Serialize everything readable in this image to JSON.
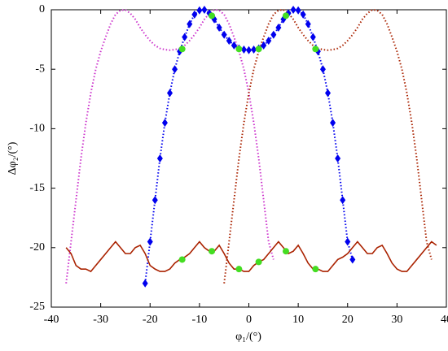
{
  "chart_data": {
    "type": "line",
    "xlabel": "φ₁/(°)",
    "ylabel": "Δφ₂/(°)",
    "xlim": [
      -40,
      40
    ],
    "xticks": [
      -40,
      -30,
      -20,
      -10,
      0,
      10,
      20,
      30,
      40
    ],
    "ylim": [
      -25,
      0
    ],
    "yticks": [
      -25,
      -20,
      -15,
      -10,
      -5,
      0
    ],
    "series": [
      {
        "color": "#cc33cc",
        "line": "dotted",
        "marker": "none",
        "x": [
          -37,
          -36,
          -35,
          -34,
          -33,
          -32,
          -31,
          -30,
          -29,
          -28,
          -27,
          -26,
          -25,
          -24,
          -23,
          -22,
          -21,
          -20,
          -19,
          -18,
          -17,
          -16,
          -15,
          -14,
          -13,
          -12,
          -11,
          -10,
          -9,
          -8,
          -7,
          -6,
          -5,
          -4,
          -3,
          -2,
          -1,
          0,
          1,
          2,
          3,
          4,
          5
        ],
        "values": [
          -23,
          -19.5,
          -16,
          -12.5,
          -9.5,
          -7,
          -5,
          -3.5,
          -2.3,
          -1.2,
          -0.4,
          -0.05,
          0,
          -0.3,
          -0.8,
          -1.5,
          -2.1,
          -2.6,
          -3,
          -3.25,
          -3.35,
          -3.4,
          -3.35,
          -3.25,
          -3,
          -2.6,
          -2.1,
          -1.5,
          -0.8,
          -0.3,
          0,
          -0.05,
          -0.4,
          -1.2,
          -2.3,
          -3.5,
          -5,
          -7,
          -9.5,
          -12.5,
          -16,
          -19.5,
          -21
        ]
      },
      {
        "color": "#aa2200",
        "line": "dotted",
        "marker": "none",
        "x": [
          -5,
          -4,
          -3,
          -2,
          -1,
          0,
          1,
          2,
          3,
          4,
          5,
          6,
          7,
          8,
          9,
          10,
          11,
          12,
          13,
          14,
          15,
          16,
          17,
          18,
          19,
          20,
          21,
          22,
          23,
          24,
          25,
          26,
          27,
          28,
          29,
          30,
          31,
          32,
          33,
          34,
          35,
          36,
          37
        ],
        "values": [
          -23,
          -19.5,
          -16,
          -12.5,
          -9.5,
          -7,
          -5,
          -3.5,
          -2.3,
          -1.2,
          -0.4,
          -0.05,
          0,
          -0.3,
          -0.8,
          -1.5,
          -2.1,
          -2.6,
          -3,
          -3.25,
          -3.35,
          -3.4,
          -3.35,
          -3.25,
          -3,
          -2.6,
          -2.1,
          -1.5,
          -0.8,
          -0.3,
          0,
          -0.05,
          -0.4,
          -1.2,
          -2.3,
          -3.5,
          -5,
          -7,
          -9.5,
          -12.5,
          -16,
          -19.5,
          -21
        ]
      },
      {
        "color": "#0000ee",
        "line": "dotted",
        "marker": "diamond",
        "x": [
          -21,
          -20,
          -19,
          -18,
          -17,
          -16,
          -15,
          -14,
          -13,
          -12,
          -11,
          -10,
          -9,
          -8,
          -7,
          -6,
          -5,
          -4,
          -3,
          -2,
          -1,
          0,
          1,
          2,
          3,
          4,
          5,
          6,
          7,
          8,
          9,
          10,
          11,
          12,
          13,
          14,
          15,
          16,
          17,
          18,
          19,
          20,
          21
        ],
        "values": [
          -23,
          -19.5,
          -16,
          -12.5,
          -9.5,
          -7,
          -5,
          -3.5,
          -2.3,
          -1.2,
          -0.4,
          -0.05,
          0,
          -0.3,
          -0.8,
          -1.5,
          -2.1,
          -2.6,
          -3,
          -3.25,
          -3.35,
          -3.4,
          -3.35,
          -3.25,
          -3,
          -2.6,
          -2.1,
          -1.5,
          -0.8,
          -0.3,
          0,
          -0.05,
          -0.4,
          -1.2,
          -2.3,
          -3.5,
          -5,
          -7,
          -9.5,
          -12.5,
          -16,
          -19.5,
          -21
        ]
      },
      {
        "color": "#aa2200",
        "line": "solid",
        "marker": "none",
        "x": [
          -37,
          -36,
          -35,
          -34,
          -33,
          -32,
          -31,
          -30,
          -29,
          -28,
          -27,
          -26,
          -25,
          -24,
          -23,
          -22,
          -21,
          -20,
          -19,
          -18,
          -17,
          -16,
          -15,
          -14,
          -13,
          -12,
          -11,
          -10,
          -9,
          -8,
          -7,
          -6,
          -5,
          -4,
          -3,
          -2,
          -1,
          0,
          1,
          2,
          3,
          4,
          5,
          6,
          7,
          8,
          9,
          10,
          11,
          12,
          13,
          14,
          15,
          16,
          17,
          18,
          19,
          20,
          21,
          22,
          23,
          24,
          25,
          26,
          27,
          28,
          29,
          30,
          31,
          32,
          33,
          34,
          35,
          36,
          37,
          38
        ],
        "values": [
          -20,
          -20.5,
          -21.5,
          -21.8,
          -21.8,
          -22,
          -21.5,
          -21,
          -20.5,
          -20,
          -19.5,
          -20,
          -20.5,
          -20.5,
          -20,
          -19.8,
          -20.5,
          -21.5,
          -21.8,
          -22,
          -22,
          -21.8,
          -21.3,
          -21,
          -20.8,
          -20.5,
          -20,
          -19.5,
          -20,
          -20.3,
          -20.3,
          -19.8,
          -20.5,
          -21.3,
          -21.8,
          -21.8,
          -22,
          -22,
          -21.5,
          -21.2,
          -21,
          -20.5,
          -20,
          -19.5,
          -20,
          -20.5,
          -20.3,
          -19.8,
          -20.5,
          -21.3,
          -21.8,
          -21.8,
          -22,
          -22,
          -21.5,
          -21,
          -20.8,
          -20.5,
          -20,
          -19.5,
          -20,
          -20.5,
          -20.5,
          -20,
          -19.8,
          -20.5,
          -21.3,
          -21.8,
          -22,
          -22,
          -21.5,
          -21,
          -20.5,
          -20,
          -19.5,
          -19.8
        ]
      },
      {
        "color": "#44dd22",
        "line": "none",
        "marker": "circle",
        "x": [
          -13.5,
          -7.5,
          -2,
          2,
          7.5,
          13.5,
          -13.5,
          -7.5,
          -2,
          2,
          7.5,
          13.5
        ],
        "values": [
          -3.3,
          -0.5,
          -3.3,
          -3.3,
          -0.5,
          -3.3,
          -21,
          -20.3,
          -21.8,
          -21.2,
          -20.3,
          -21.8
        ]
      }
    ]
  }
}
